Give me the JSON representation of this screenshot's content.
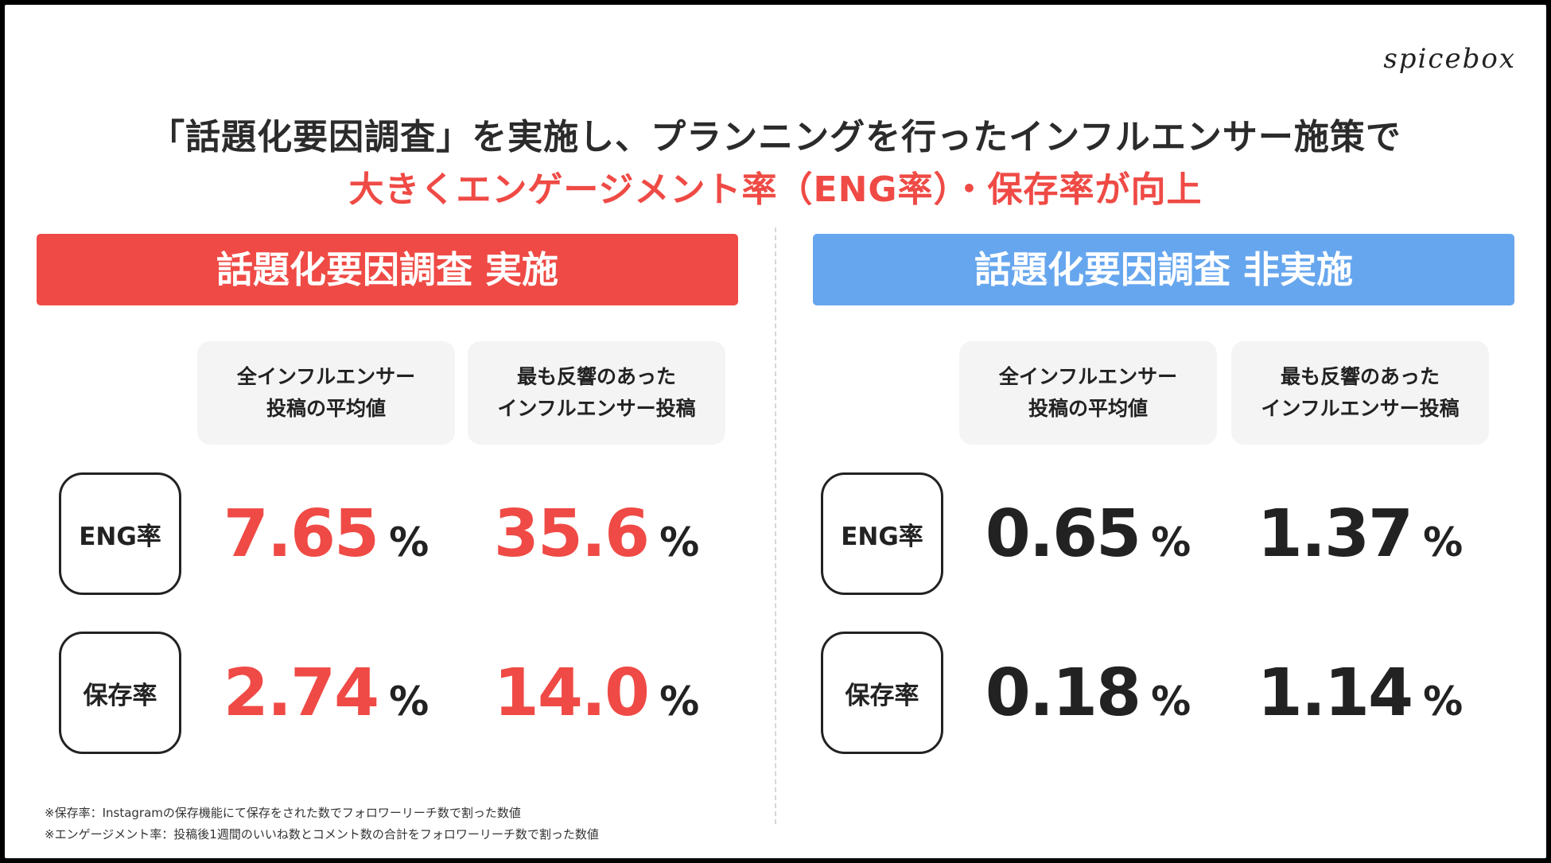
{
  "brand": {
    "logo": "spicebox"
  },
  "headline": {
    "line1": "「話題化要因調査」を実施し、プランニングを行ったインフルエンサー施策で",
    "line2": "大きくエンゲージメント率（ENG率）・保存率が向上"
  },
  "colors": {
    "accent_red": "#ef4a45",
    "accent_blue": "#66a6ee",
    "text_dark": "#222222"
  },
  "left": {
    "banner": "話題化要因調査 実施",
    "col1": {
      "line1": "全インフルエンサー",
      "line2": "投稿の平均値"
    },
    "col2": {
      "line1": "最も反響のあった",
      "line2": "インフルエンサー投稿"
    },
    "row1": {
      "label": "ENG率",
      "v1": "7.65",
      "v2": "35.6"
    },
    "row2": {
      "label": "保存率",
      "v1": "2.74",
      "v2": "14.0"
    }
  },
  "right": {
    "banner": "話題化要因調査 非実施",
    "col1": {
      "line1": "全インフルエンサー",
      "line2": "投稿の平均値"
    },
    "col2": {
      "line1": "最も反響のあった",
      "line2": "インフルエンサー投稿"
    },
    "row1": {
      "label": "ENG率",
      "v1": "0.65",
      "v2": "1.37"
    },
    "row2": {
      "label": "保存率",
      "v1": "0.18",
      "v2": "1.14"
    }
  },
  "unit": "%",
  "notes": {
    "n1": "※保存率：Instagramの保存機能にて保存をされた数でフォロワーリーチ数で割った数値",
    "n2": "※エンゲージメント率：投稿後1週間のいいね数とコメント数の合計をフォロワーリーチ数で割った数値"
  }
}
